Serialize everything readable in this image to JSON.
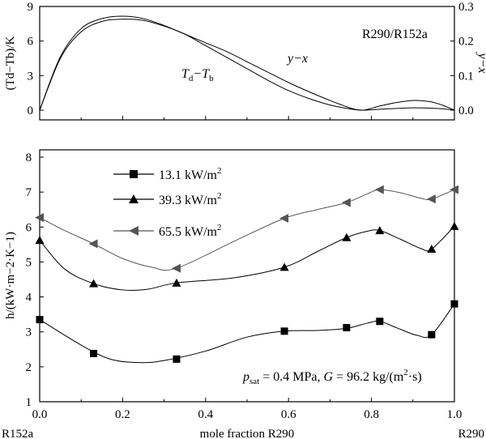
{
  "chart_data": [
    {
      "type": "line",
      "panel": "top",
      "label": "R290/R152a",
      "xlim": [
        0,
        1
      ],
      "ylim_left": [
        0,
        9
      ],
      "ylim_right": [
        0,
        0.3
      ],
      "yticks_left": [
        "0",
        "3",
        "6",
        "9"
      ],
      "yticks_right": [
        "0.0",
        "0.1",
        "0.2",
        "0.3"
      ],
      "ylabel_left": "(Td−Tb)/K",
      "ylabel_right": "y−x",
      "series": [
        {
          "name": "Td−Tb",
          "axis": "left",
          "annotation_main": "T",
          "annotation_sub1": "d",
          "annotation_mid": "−T",
          "annotation_sub2": "b",
          "x": [
            0,
            0.05,
            0.1,
            0.15,
            0.2,
            0.25,
            0.3,
            0.35,
            0.4,
            0.45,
            0.5,
            0.55,
            0.6,
            0.65,
            0.7,
            0.75,
            0.78,
            0.82,
            0.86,
            0.9,
            0.94,
            0.97,
            1.0
          ],
          "y": [
            0,
            4.5,
            6.8,
            7.7,
            7.9,
            7.8,
            7.3,
            6.6,
            5.6,
            4.6,
            3.6,
            2.6,
            1.7,
            1.0,
            0.45,
            0.1,
            0.0,
            0.08,
            0.15,
            0.2,
            0.18,
            0.12,
            0.0
          ]
        },
        {
          "name": "y−x",
          "axis": "right",
          "annotation": "y−x",
          "x": [
            0,
            0.05,
            0.1,
            0.15,
            0.2,
            0.25,
            0.3,
            0.35,
            0.4,
            0.45,
            0.5,
            0.55,
            0.6,
            0.65,
            0.7,
            0.75,
            0.78,
            0.82,
            0.86,
            0.9,
            0.94,
            0.97,
            1.0
          ],
          "y": [
            0,
            0.155,
            0.236,
            0.265,
            0.272,
            0.265,
            0.245,
            0.22,
            0.195,
            0.17,
            0.14,
            0.11,
            0.08,
            0.053,
            0.028,
            0.006,
            0.0,
            0.012,
            0.022,
            0.028,
            0.025,
            0.015,
            0.0
          ]
        }
      ]
    },
    {
      "type": "line",
      "panel": "bottom",
      "xlim": [
        0,
        1
      ],
      "ylim": [
        1,
        8
      ],
      "xticks": [
        "0.0",
        "0.2",
        "0.4",
        "0.6",
        "0.8",
        "1.0"
      ],
      "yticks": [
        "1",
        "2",
        "3",
        "4",
        "5",
        "6",
        "7",
        "8"
      ],
      "ylabel": "h/(kW·m−2·K−1)",
      "xlabel": "mole fraction R290",
      "x_end_left": "R152a",
      "x_end_right": "R290",
      "annotation": {
        "p": "p",
        "p_sub": "sat",
        "rest1": " = 0.4 MPa, ",
        "g": "G",
        "rest2": " = 96.2 kg/(m",
        "sup": "2",
        "rest3": "·s)"
      },
      "series": [
        {
          "name": "13.1 kW/m2",
          "legend_text": "13.1 kW/m",
          "legend_sup": "2",
          "marker": "square",
          "color": "#000000",
          "x": [
            0,
            0.13,
            0.33,
            0.59,
            0.74,
            0.82,
            0.945,
            1.0
          ],
          "y": [
            3.35,
            2.38,
            2.22,
            3.02,
            3.12,
            3.3,
            2.92,
            3.8
          ],
          "curve_y": [
            3.35,
            2.62,
            2.22,
            2.12,
            2.18,
            2.45,
            2.85,
            3.02,
            3.04,
            3.1,
            3.25,
            3.3,
            3.12,
            2.9,
            2.92,
            3.8
          ],
          "curve_x": [
            0,
            0.1,
            0.17,
            0.24,
            0.3,
            0.4,
            0.5,
            0.59,
            0.67,
            0.74,
            0.79,
            0.82,
            0.86,
            0.91,
            0.945,
            1.0
          ]
        },
        {
          "name": "39.3 kW/m2",
          "legend_text": "39.3 kW/m",
          "legend_sup": "2",
          "marker": "triangle-up",
          "color": "#000000",
          "x": [
            0,
            0.13,
            0.33,
            0.59,
            0.74,
            0.82,
            0.945,
            1.0
          ],
          "y": [
            5.62,
            4.38,
            4.4,
            4.85,
            5.7,
            5.9,
            5.37,
            6.02
          ],
          "curve_y": [
            5.62,
            4.8,
            4.38,
            4.2,
            4.22,
            4.4,
            4.55,
            4.85,
            5.3,
            5.7,
            5.88,
            5.9,
            5.65,
            5.38,
            5.37,
            6.02
          ],
          "curve_x": [
            0,
            0.06,
            0.13,
            0.2,
            0.26,
            0.33,
            0.47,
            0.59,
            0.67,
            0.74,
            0.79,
            0.82,
            0.87,
            0.92,
            0.945,
            1.0
          ]
        },
        {
          "name": "65.5 kW/m2",
          "legend_text": "65.5 kW/m",
          "legend_sup": "2",
          "marker": "triangle-left",
          "color": "#555555",
          "x": [
            0,
            0.13,
            0.33,
            0.59,
            0.74,
            0.82,
            0.945,
            1.0
          ],
          "y": [
            6.27,
            5.52,
            4.82,
            6.25,
            6.7,
            7.07,
            6.8,
            7.07
          ],
          "curve_y": [
            6.27,
            5.9,
            5.52,
            5.1,
            4.85,
            4.82,
            5.6,
            6.25,
            6.5,
            6.7,
            6.95,
            7.07,
            6.98,
            6.82,
            6.8,
            7.07
          ],
          "curve_x": [
            0,
            0.06,
            0.13,
            0.2,
            0.27,
            0.33,
            0.47,
            0.59,
            0.67,
            0.74,
            0.79,
            0.82,
            0.87,
            0.92,
            0.945,
            1.0
          ]
        }
      ]
    }
  ]
}
